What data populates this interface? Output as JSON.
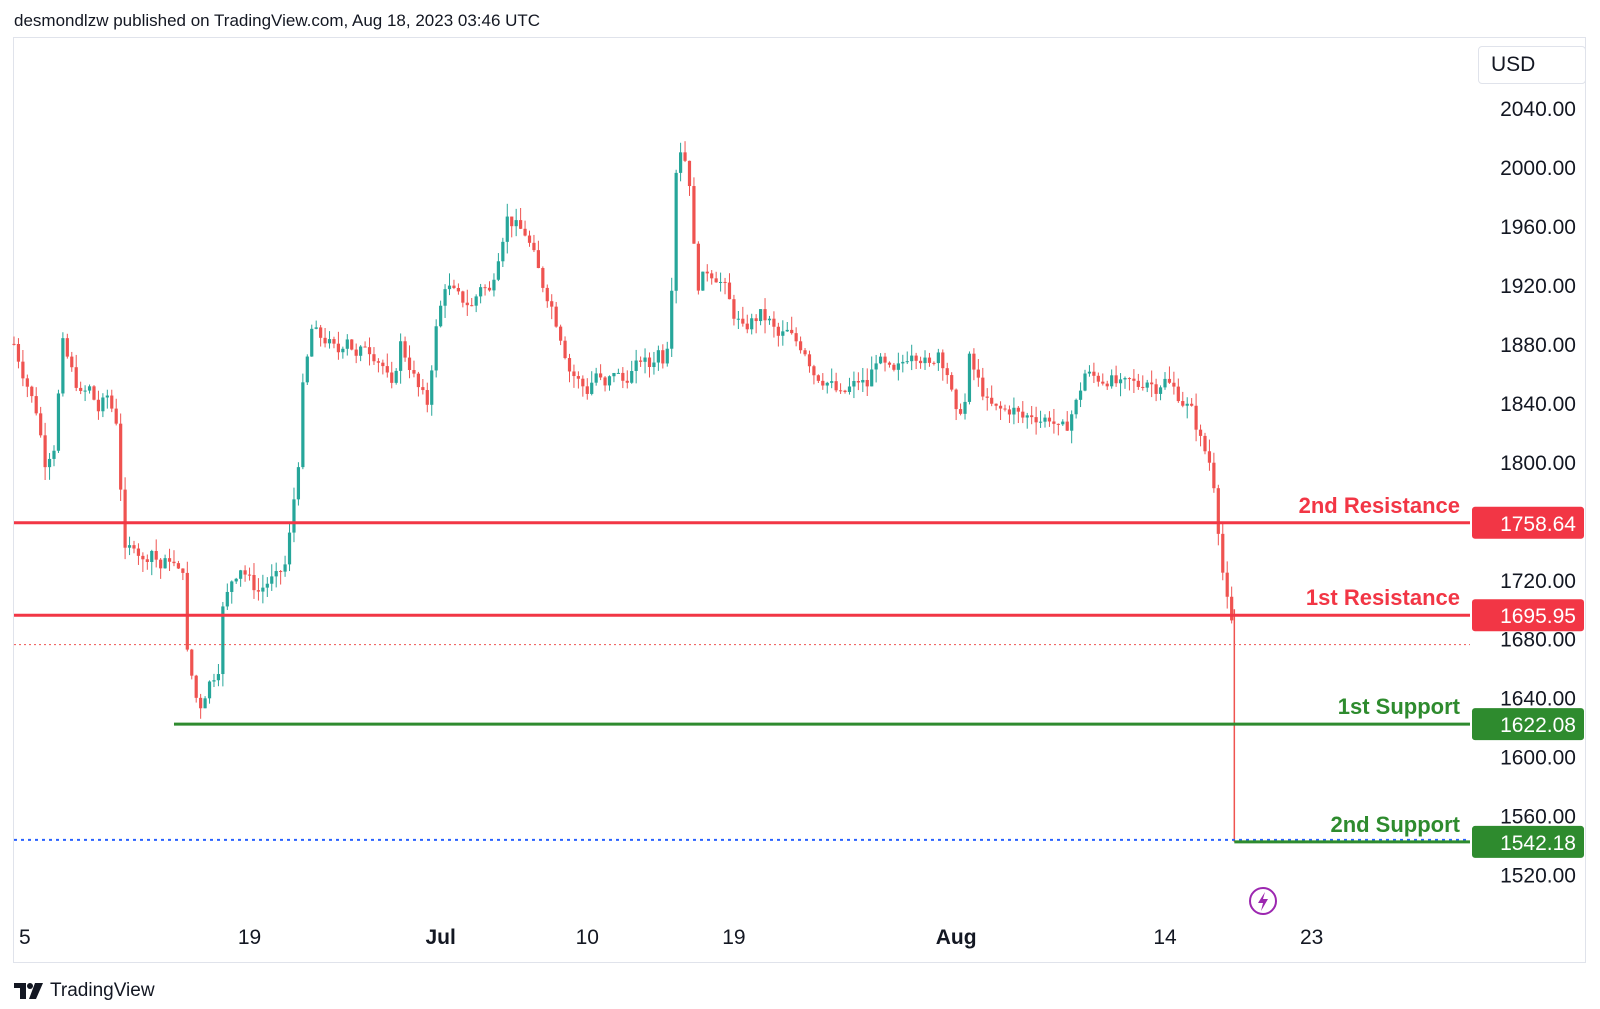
{
  "header": {
    "publish_note": "desmondlzw published on TradingView.com, Aug 18, 2023 03:46 UTC"
  },
  "currency": "USD",
  "footer": {
    "brand": "TradingView"
  },
  "icons": {
    "logo": "tradingview-logo-icon",
    "event": "lightning-event-icon"
  },
  "colors": {
    "up": "#26a69a",
    "down": "#ef5350",
    "resistance": "#f23645",
    "support": "#2e8b2e",
    "dotted_blue": "#2962ff",
    "text": "#131722"
  },
  "chart_data": {
    "type": "candlestick",
    "y_axis": {
      "min": 1500,
      "max": 2060,
      "ticks": [
        "2040.00",
        "2000.00",
        "1960.00",
        "1920.00",
        "1880.00",
        "1840.00",
        "1800.00",
        "1720.00",
        "1680.00",
        "1640.00",
        "1600.00",
        "1560.00",
        "1520.00"
      ]
    },
    "x_axis": {
      "ticks": [
        "5",
        "19",
        "Jul",
        "10",
        "19",
        "Aug",
        "14",
        "23"
      ]
    },
    "levels": [
      {
        "label": "2nd Resistance",
        "value": 1758.64,
        "tag": "1758.64",
        "kind": "resistance"
      },
      {
        "label": "1st Resistance",
        "value": 1695.95,
        "tag": "1695.95",
        "kind": "resistance"
      },
      {
        "label": "1st Support",
        "value": 1622.08,
        "tag": "1622.08",
        "kind": "support"
      },
      {
        "label": "2nd Support",
        "value": 1542.18,
        "tag": "1542.18",
        "kind": "support"
      }
    ],
    "last_price": 1676,
    "path_points": [
      [
        0,
        1880
      ],
      [
        2,
        1860
      ],
      [
        5,
        1835
      ],
      [
        7,
        1800
      ],
      [
        9,
        1810
      ],
      [
        11,
        1880
      ],
      [
        13,
        1862
      ],
      [
        15,
        1845
      ],
      [
        17,
        1850
      ],
      [
        19,
        1835
      ],
      [
        21,
        1845
      ],
      [
        23,
        1828
      ],
      [
        25,
        1738
      ],
      [
        27,
        1745
      ],
      [
        29,
        1732
      ],
      [
        31,
        1740
      ],
      [
        33,
        1728
      ],
      [
        35,
        1735
      ],
      [
        37,
        1725
      ],
      [
        38,
        1728
      ],
      [
        39,
        1670
      ],
      [
        41,
        1640
      ],
      [
        42,
        1635
      ],
      [
        44,
        1650
      ],
      [
        46,
        1660
      ],
      [
        47,
        1700
      ],
      [
        49,
        1720
      ],
      [
        51,
        1728
      ],
      [
        53,
        1720
      ],
      [
        55,
        1712
      ],
      [
        57,
        1718
      ],
      [
        59,
        1722
      ],
      [
        61,
        1730
      ],
      [
        62,
        1750
      ],
      [
        64,
        1800
      ],
      [
        65,
        1850
      ],
      [
        67,
        1890
      ],
      [
        69,
        1885
      ],
      [
        71,
        1880
      ],
      [
        73,
        1875
      ],
      [
        75,
        1885
      ],
      [
        77,
        1870
      ],
      [
        79,
        1880
      ],
      [
        81,
        1872
      ],
      [
        83,
        1865
      ],
      [
        85,
        1850
      ],
      [
        87,
        1880
      ],
      [
        89,
        1865
      ],
      [
        91,
        1850
      ],
      [
        93,
        1840
      ],
      [
        95,
        1890
      ],
      [
        97,
        1920
      ],
      [
        99,
        1915
      ],
      [
        101,
        1910
      ],
      [
        103,
        1905
      ],
      [
        105,
        1920
      ],
      [
        107,
        1915
      ],
      [
        109,
        1940
      ],
      [
        111,
        1965
      ],
      [
        113,
        1960
      ],
      [
        115,
        1955
      ],
      [
        117,
        1940
      ],
      [
        119,
        1920
      ],
      [
        121,
        1905
      ],
      [
        123,
        1885
      ],
      [
        125,
        1862
      ],
      [
        127,
        1855
      ],
      [
        129,
        1848
      ],
      [
        131,
        1860
      ],
      [
        133,
        1850
      ],
      [
        135,
        1862
      ],
      [
        137,
        1855
      ],
      [
        139,
        1860
      ],
      [
        141,
        1870
      ],
      [
        143,
        1865
      ],
      [
        145,
        1875
      ],
      [
        146,
        1870
      ],
      [
        147,
        1880
      ],
      [
        148,
        1920
      ],
      [
        149,
        1998
      ],
      [
        150,
        2012
      ],
      [
        151,
        2005
      ],
      [
        152,
        1990
      ],
      [
        153,
        1945
      ],
      [
        154,
        1920
      ],
      [
        156,
        1930
      ],
      [
        158,
        1925
      ],
      [
        160,
        1918
      ],
      [
        162,
        1900
      ],
      [
        164,
        1890
      ],
      [
        166,
        1895
      ],
      [
        168,
        1900
      ],
      [
        170,
        1895
      ],
      [
        172,
        1885
      ],
      [
        174,
        1888
      ],
      [
        176,
        1882
      ],
      [
        178,
        1875
      ],
      [
        180,
        1860
      ],
      [
        182,
        1855
      ],
      [
        184,
        1852
      ],
      [
        186,
        1845
      ],
      [
        188,
        1850
      ],
      [
        190,
        1855
      ],
      [
        192,
        1852
      ],
      [
        194,
        1870
      ],
      [
        196,
        1865
      ],
      [
        198,
        1860
      ],
      [
        200,
        1868
      ],
      [
        202,
        1875
      ],
      [
        204,
        1870
      ],
      [
        206,
        1865
      ],
      [
        208,
        1875
      ],
      [
        210,
        1860
      ],
      [
        212,
        1832
      ],
      [
        214,
        1840
      ],
      [
        215,
        1870
      ],
      [
        217,
        1855
      ],
      [
        219,
        1840
      ],
      [
        221,
        1836
      ],
      [
        223,
        1835
      ],
      [
        225,
        1835
      ],
      [
        227,
        1830
      ],
      [
        229,
        1832
      ],
      [
        231,
        1828
      ],
      [
        233,
        1830
      ],
      [
        235,
        1822
      ],
      [
        237,
        1825
      ],
      [
        239,
        1840
      ],
      [
        241,
        1860
      ],
      [
        243,
        1858
      ],
      [
        245,
        1855
      ],
      [
        247,
        1855
      ],
      [
        249,
        1852
      ],
      [
        251,
        1855
      ],
      [
        253,
        1852
      ],
      [
        255,
        1855
      ],
      [
        257,
        1850
      ],
      [
        259,
        1855
      ],
      [
        261,
        1850
      ],
      [
        263,
        1840
      ],
      [
        265,
        1835
      ],
      [
        266,
        1825
      ],
      [
        267,
        1815
      ],
      [
        269,
        1800
      ],
      [
        270,
        1785
      ],
      [
        271,
        1755
      ],
      [
        272,
        1725
      ],
      [
        273,
        1705
      ],
      [
        274,
        1690
      ],
      [
        274.6,
        1676
      ]
    ]
  }
}
